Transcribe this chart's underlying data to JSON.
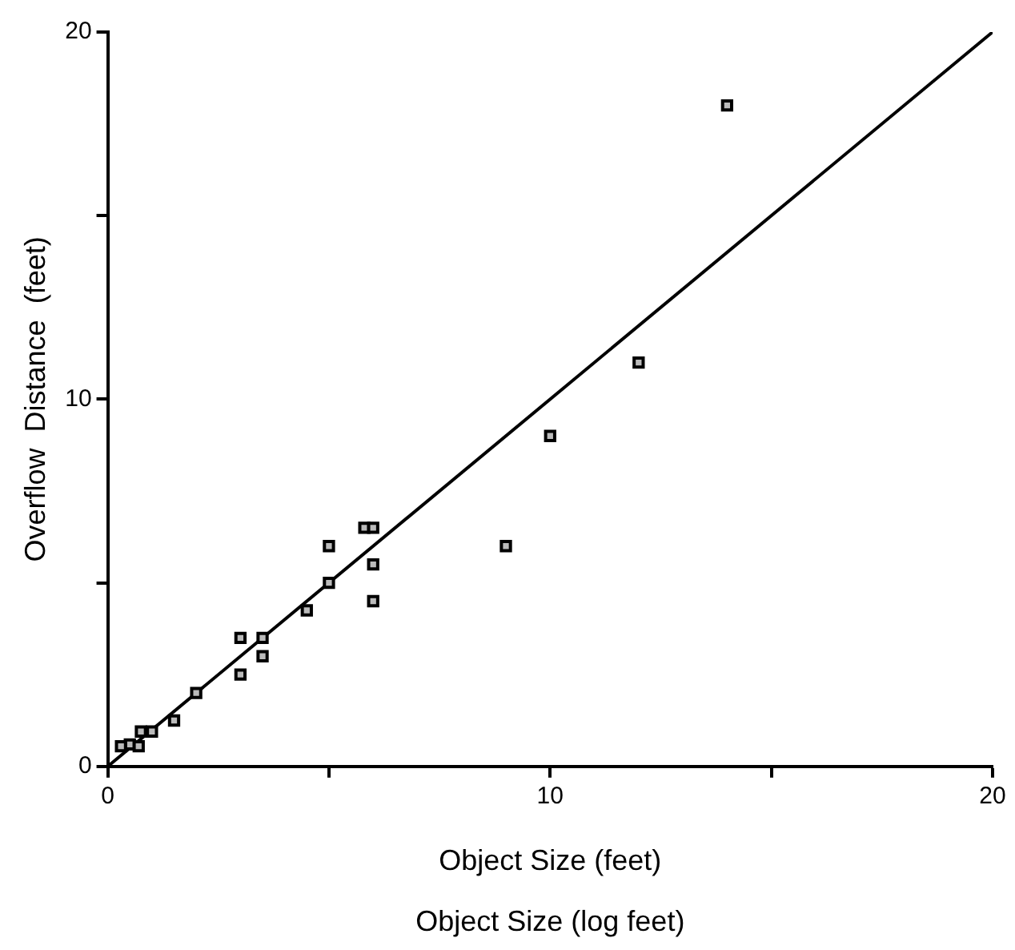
{
  "chart_data": {
    "type": "scatter",
    "xlabel": "Object Size (feet)",
    "ylabel": "Overflow  Distance  (feet)",
    "annotations": [
      "Object Size (log feet)"
    ],
    "xlim": [
      0,
      20
    ],
    "xticks": [
      0,
      {
        "value": 5,
        "label": null
      },
      10,
      {
        "value": 15,
        "label": null
      },
      20
    ],
    "ylim": [
      0,
      20
    ],
    "yticks": [
      0,
      {
        "value": 5,
        "label": null
      },
      10,
      {
        "value": 15,
        "label": null
      },
      20
    ],
    "grid": false,
    "legend": false,
    "marker": "square",
    "series": [
      {
        "color": "#000000",
        "x": [
          14,
          12,
          10,
          9,
          5.8,
          6,
          5,
          6,
          6,
          5,
          4.5,
          3,
          3.5,
          3.5,
          3,
          2,
          1.5,
          1,
          0.75,
          0.5,
          0.3,
          0.7
        ],
        "values": [
          18,
          11,
          9,
          6,
          6.5,
          6.5,
          6,
          5.5,
          4.5,
          5,
          4.25,
          3.5,
          3.5,
          3,
          2.5,
          2,
          1.25,
          0.95,
          0.95,
          0.6,
          0.55,
          0.55
        ]
      },
      {
        "type": "line",
        "color": "#000000",
        "marker": "none",
        "x": [
          0,
          20
        ],
        "values": [
          0,
          20
        ]
      }
    ]
  }
}
